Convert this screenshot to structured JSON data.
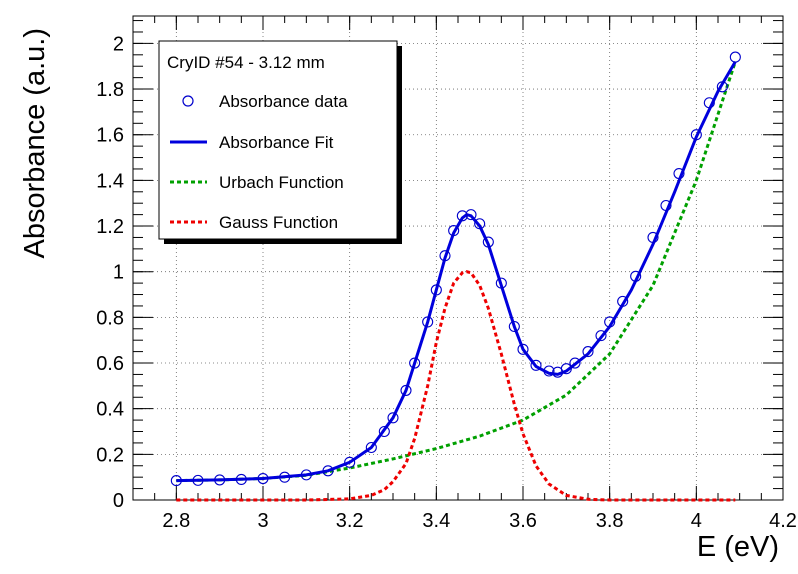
{
  "chart_data": {
    "type": "scatter",
    "title": "",
    "xlabel": "E (eV)",
    "ylabel": "Absorbance (a.u.)",
    "xlim": [
      2.7,
      4.2
    ],
    "ylim": [
      0,
      2.12
    ],
    "x_ticks": [
      2.8,
      3.0,
      3.2,
      3.4,
      3.6,
      3.8,
      4.0,
      4.2
    ],
    "x_tick_labels": [
      "2.8",
      "3",
      "3.2",
      "3.4",
      "3.6",
      "3.8",
      "4",
      "4.2"
    ],
    "y_ticks": [
      0,
      0.2,
      0.4,
      0.6,
      0.8,
      1.0,
      1.2,
      1.4,
      1.6,
      1.8,
      2.0
    ],
    "y_tick_labels": [
      "0",
      "0.2",
      "0.4",
      "0.6",
      "0.8",
      "1",
      "1.2",
      "1.4",
      "1.6",
      "1.8",
      "2"
    ],
    "grid": true,
    "legend_position": "top-left",
    "legend": {
      "header": "CryID #54 - 3.12 mm",
      "entries": [
        "Absorbance data",
        "Absorbance Fit",
        "Urbach Function",
        "Gauss Function"
      ]
    },
    "colors": {
      "data": "#0000cc",
      "fit": "#0000dd",
      "urbach": "#00a000",
      "gauss": "#ee0000",
      "grid": "#666666"
    },
    "series": [
      {
        "name": "Absorbance data",
        "style": "open-circles",
        "x": [
          2.8,
          2.85,
          2.9,
          2.95,
          3.0,
          3.05,
          3.1,
          3.15,
          3.2,
          3.25,
          3.28,
          3.3,
          3.33,
          3.35,
          3.38,
          3.4,
          3.42,
          3.44,
          3.46,
          3.48,
          3.5,
          3.52,
          3.55,
          3.58,
          3.6,
          3.63,
          3.66,
          3.68,
          3.7,
          3.72,
          3.75,
          3.78,
          3.8,
          3.83,
          3.86,
          3.9,
          3.93,
          3.96,
          4.0,
          4.03,
          4.06,
          4.09
        ],
        "y": [
          0.085,
          0.086,
          0.088,
          0.09,
          0.094,
          0.1,
          0.11,
          0.128,
          0.165,
          0.23,
          0.3,
          0.36,
          0.48,
          0.6,
          0.78,
          0.92,
          1.07,
          1.18,
          1.245,
          1.25,
          1.21,
          1.13,
          0.95,
          0.76,
          0.66,
          0.59,
          0.565,
          0.56,
          0.575,
          0.6,
          0.65,
          0.72,
          0.78,
          0.87,
          0.98,
          1.15,
          1.29,
          1.43,
          1.6,
          1.74,
          1.81,
          1.94
        ]
      },
      {
        "name": "Absorbance Fit",
        "style": "line",
        "x": [
          2.8,
          2.9,
          3.0,
          3.1,
          3.15,
          3.2,
          3.25,
          3.3,
          3.33,
          3.35,
          3.38,
          3.4,
          3.42,
          3.44,
          3.46,
          3.47,
          3.48,
          3.5,
          3.52,
          3.55,
          3.58,
          3.6,
          3.63,
          3.66,
          3.68,
          3.7,
          3.75,
          3.8,
          3.85,
          3.9,
          3.95,
          4.0,
          4.05,
          4.09
        ],
        "y": [
          0.085,
          0.088,
          0.094,
          0.11,
          0.128,
          0.165,
          0.23,
          0.36,
          0.48,
          0.6,
          0.78,
          0.92,
          1.06,
          1.17,
          1.235,
          1.25,
          1.245,
          1.2,
          1.12,
          0.94,
          0.76,
          0.66,
          0.585,
          0.555,
          0.55,
          0.565,
          0.64,
          0.76,
          0.92,
          1.12,
          1.35,
          1.59,
          1.79,
          1.92
        ]
      },
      {
        "name": "Urbach Function",
        "style": "dashed",
        "x": [
          2.8,
          2.9,
          3.0,
          3.1,
          3.2,
          3.3,
          3.4,
          3.5,
          3.6,
          3.7,
          3.8,
          3.9,
          4.0,
          4.09
        ],
        "y": [
          0.085,
          0.088,
          0.094,
          0.108,
          0.14,
          0.18,
          0.225,
          0.28,
          0.35,
          0.46,
          0.64,
          0.94,
          1.4,
          1.92
        ]
      },
      {
        "name": "Gauss Function",
        "style": "dashed",
        "x": [
          2.8,
          3.1,
          3.2,
          3.25,
          3.28,
          3.3,
          3.33,
          3.35,
          3.38,
          3.4,
          3.42,
          3.44,
          3.46,
          3.47,
          3.48,
          3.5,
          3.52,
          3.55,
          3.58,
          3.6,
          3.63,
          3.66,
          3.7,
          3.75,
          3.8,
          4.09
        ],
        "y": [
          0.0,
          0.0,
          0.005,
          0.02,
          0.045,
          0.08,
          0.16,
          0.27,
          0.5,
          0.69,
          0.84,
          0.95,
          0.995,
          1.0,
          0.995,
          0.94,
          0.84,
          0.64,
          0.42,
          0.29,
          0.15,
          0.07,
          0.02,
          0.003,
          0.0,
          0.0
        ]
      }
    ]
  }
}
